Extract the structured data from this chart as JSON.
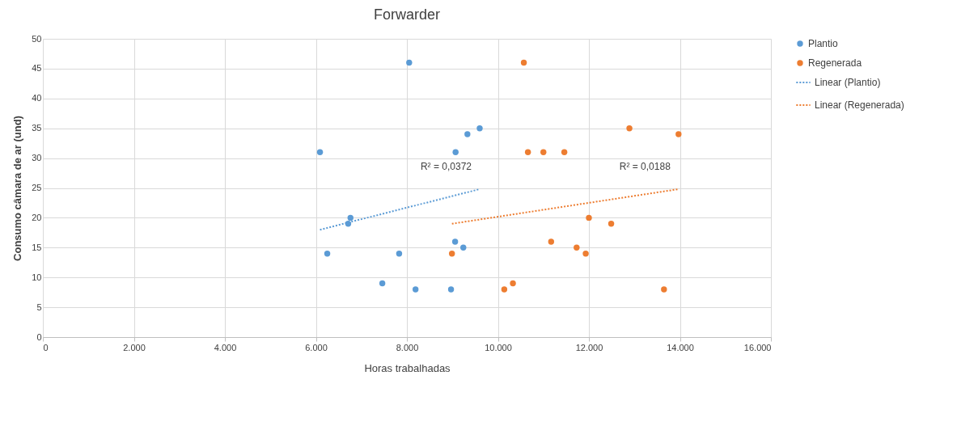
{
  "chart_data": {
    "type": "scatter",
    "title": "Forwarder",
    "xlabel": "Horas trabalhadas",
    "ylabel": "Consumo câmara de ar (und)",
    "xlim": [
      0,
      16000
    ],
    "ylim": [
      0,
      50
    ],
    "xticks": [
      0,
      {
        "value": 2000,
        "label": "2.000"
      },
      {
        "value": 4000,
        "label": "4.000"
      },
      {
        "value": 6000,
        "label": "6.000"
      },
      {
        "value": 8000,
        "label": "8.000"
      },
      {
        "value": 10000,
        "label": "10.000"
      },
      {
        "value": 12000,
        "label": "12.000"
      },
      {
        "value": 14000,
        "label": "14.000"
      },
      {
        "value": 16000,
        "label": "16.000"
      }
    ],
    "yticks": [
      0,
      5,
      10,
      15,
      20,
      25,
      30,
      35,
      40,
      45,
      50
    ],
    "grid": true,
    "legend": "right",
    "series": [
      {
        "name": "Plantio",
        "marker": "circle",
        "color": "#5b9bd5",
        "x": [
          6090,
          6710,
          6760,
          6250,
          7460,
          7830,
          8050,
          8190,
          8970,
          9070,
          9060,
          9240,
          9330,
          9600
        ],
        "values": [
          31,
          19,
          20,
          14,
          9,
          14,
          46,
          8,
          8,
          31,
          16,
          15,
          34,
          35
        ]
      },
      {
        "name": "Regenerada",
        "marker": "circle",
        "color": "#ed7d31",
        "x": [
          8990,
          10140,
          10330,
          10570,
          10660,
          11000,
          11170,
          11460,
          11730,
          11930,
          12000,
          12490,
          12890,
          13650,
          13970
        ],
        "values": [
          14,
          8,
          9,
          46,
          31,
          31,
          16,
          31,
          15,
          14,
          20,
          19,
          35,
          8,
          34
        ]
      },
      {
        "name": "Linear (Plantio)",
        "type": "line",
        "line_style": "dotted",
        "color": "#5b9bd5",
        "x": [
          6090,
          9600
        ],
        "values": [
          18.0,
          24.8
        ]
      },
      {
        "name": "Linear (Regenerada)",
        "type": "line",
        "line_style": "dotted",
        "color": "#ed7d31",
        "x": [
          8990,
          13970
        ],
        "values": [
          19.0,
          24.8
        ]
      }
    ],
    "annotations": [
      "R² = 0,0372",
      "R² = 0,0188"
    ]
  }
}
